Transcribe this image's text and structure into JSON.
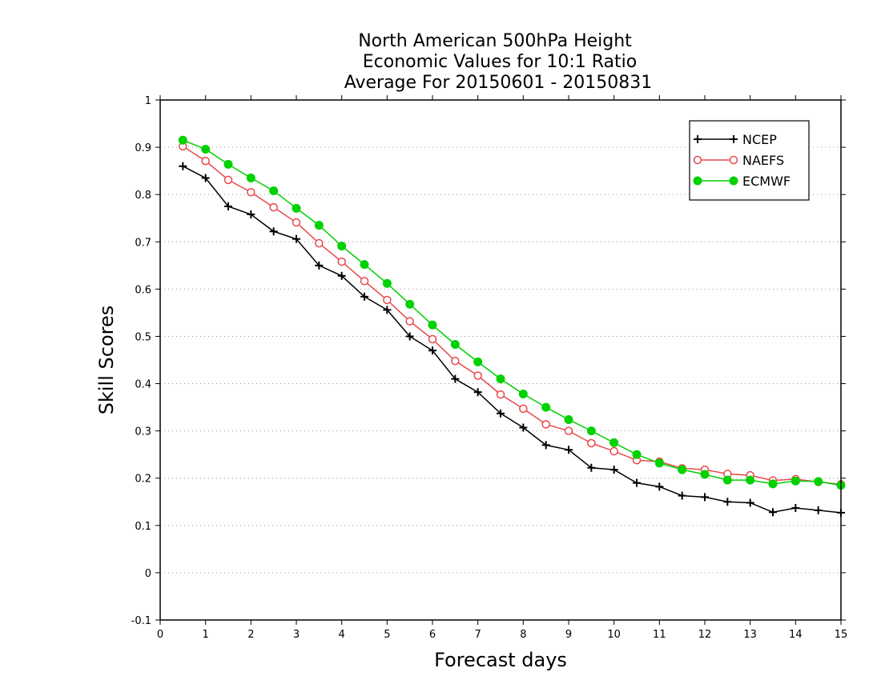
{
  "chart_data": {
    "type": "line",
    "title": [
      "North American 500hPa Height",
      "Economic Values for 10:1 Ratio",
      "Average For 20150601 - 20150831"
    ],
    "xlabel": "Forecast days",
    "ylabel": "Skill Scores",
    "xlim": [
      0,
      15
    ],
    "ylim": [
      -0.1,
      1
    ],
    "xticks": [
      "0",
      "1",
      "2",
      "3",
      "4",
      "5",
      "6",
      "7",
      "8",
      "9",
      "10",
      "11",
      "12",
      "13",
      "14",
      "15"
    ],
    "yticks": [
      "-0.1",
      "0",
      "0.1",
      "0.2",
      "0.3",
      "0.4",
      "0.5",
      "0.6",
      "0.7",
      "0.8",
      "0.9",
      "1"
    ],
    "y_gridlines": true,
    "legend_position": "top-right",
    "x": [
      0.5,
      1.0,
      1.5,
      2.0,
      2.5,
      3.0,
      3.5,
      4.0,
      4.5,
      5.0,
      5.5,
      6.0,
      6.5,
      7.0,
      7.5,
      8.0,
      8.5,
      9.0,
      9.5,
      10.0,
      10.5,
      11.0,
      11.5,
      12.0,
      12.5,
      13.0,
      13.5,
      14.0,
      14.5,
      15.0
    ],
    "series": [
      {
        "name": "NCEP",
        "color": "#000000",
        "marker": "plus",
        "values": [
          0.86,
          0.835,
          0.775,
          0.758,
          0.722,
          0.706,
          0.65,
          0.628,
          0.584,
          0.556,
          0.5,
          0.47,
          0.41,
          0.382,
          0.337,
          0.307,
          0.27,
          0.26,
          0.222,
          0.218,
          0.19,
          0.182,
          0.163,
          0.16,
          0.15,
          0.148,
          0.128,
          0.137,
          0.132,
          0.127
        ]
      },
      {
        "name": "NAEFS",
        "color": "#e8484a",
        "marker": "open-circle",
        "values": [
          0.902,
          0.871,
          0.831,
          0.805,
          0.773,
          0.741,
          0.697,
          0.658,
          0.617,
          0.577,
          0.532,
          0.494,
          0.448,
          0.417,
          0.377,
          0.347,
          0.314,
          0.3,
          0.274,
          0.257,
          0.238,
          0.235,
          0.221,
          0.218,
          0.209,
          0.206,
          0.195,
          0.198,
          0.192,
          0.187
        ]
      },
      {
        "name": "ECMWF",
        "color": "#00d100",
        "marker": "filled-circle",
        "values": [
          0.915,
          0.896,
          0.864,
          0.835,
          0.808,
          0.771,
          0.735,
          0.691,
          0.652,
          0.612,
          0.568,
          0.524,
          0.483,
          0.446,
          0.41,
          0.378,
          0.35,
          0.324,
          0.3,
          0.275,
          0.25,
          0.232,
          0.218,
          0.208,
          0.196,
          0.196,
          0.188,
          0.194,
          0.193,
          0.185
        ]
      }
    ]
  }
}
